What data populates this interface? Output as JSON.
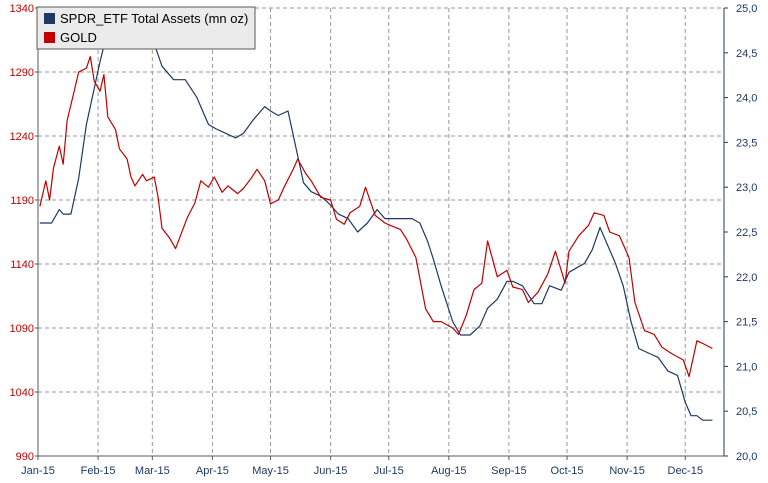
{
  "chart_data": {
    "type": "line",
    "legend_position": "top-left",
    "grid": true,
    "x_tick_labels": [
      "Jan-15",
      "Feb-15",
      "Mar-15",
      "Apr-15",
      "May-15",
      "Jun-15",
      "Jul-15",
      "Aug-15",
      "Sep-15",
      "Oct-15",
      "Nov-15",
      "Dec-15"
    ],
    "y_left": {
      "ylim": [
        990,
        1340
      ],
      "ticks": [
        990,
        1040,
        1090,
        1140,
        1190,
        1240,
        1290,
        1340
      ],
      "tick_labels": [
        "990",
        "1040",
        "1090",
        "1140",
        "1190",
        "1240",
        "1290",
        "1340"
      ]
    },
    "y_right": {
      "ylim": [
        20.0,
        25.0
      ],
      "ticks": [
        20.0,
        20.5,
        21.0,
        21.5,
        22.0,
        22.5,
        23.0,
        23.5,
        24.0,
        24.5,
        25.0
      ],
      "tick_labels": [
        "20,0",
        "20,5",
        "21,0",
        "21,5",
        "22,0",
        "22,5",
        "23,0",
        "23,5",
        "24,0",
        "24,5",
        "25,0"
      ]
    },
    "series": [
      {
        "name": "SPDR_ETF Total Assets (mn oz)",
        "axis": "right",
        "color": "#1f3864",
        "x": [
          "2015-01-02",
          "2015-01-08",
          "2015-01-12",
          "2015-01-14",
          "2015-01-18",
          "2015-01-22",
          "2015-01-26",
          "2015-01-30",
          "2015-02-02",
          "2015-02-06",
          "2015-02-10",
          "2015-02-16",
          "2015-02-20",
          "2015-02-26",
          "2015-03-02",
          "2015-03-06",
          "2015-03-12",
          "2015-03-18",
          "2015-03-24",
          "2015-03-30",
          "2015-04-03",
          "2015-04-08",
          "2015-04-13",
          "2015-04-17",
          "2015-04-22",
          "2015-04-28",
          "2015-05-01",
          "2015-05-05",
          "2015-05-10",
          "2015-05-15",
          "2015-05-18",
          "2015-05-22",
          "2015-05-27",
          "2015-06-01",
          "2015-06-05",
          "2015-06-10",
          "2015-06-15",
          "2015-06-20",
          "2015-06-25",
          "2015-06-29",
          "2015-07-03",
          "2015-07-08",
          "2015-07-13",
          "2015-07-17",
          "2015-07-21",
          "2015-07-24",
          "2015-07-28",
          "2015-08-03",
          "2015-08-07",
          "2015-08-12",
          "2015-08-17",
          "2015-08-21",
          "2015-08-26",
          "2015-08-31",
          "2015-09-03",
          "2015-09-08",
          "2015-09-14",
          "2015-09-18",
          "2015-09-22",
          "2015-09-28",
          "2015-10-02",
          "2015-10-06",
          "2015-10-10",
          "2015-10-14",
          "2015-10-18",
          "2015-10-22",
          "2015-10-26",
          "2015-10-30",
          "2015-11-03",
          "2015-11-07",
          "2015-11-12",
          "2015-11-17",
          "2015-11-22",
          "2015-11-27",
          "2015-12-01",
          "2015-12-04",
          "2015-12-07",
          "2015-12-10",
          "2015-12-15"
        ],
        "values": [
          22.6,
          22.6,
          22.75,
          22.7,
          22.7,
          23.1,
          23.7,
          24.1,
          24.4,
          24.75,
          25.0,
          24.95,
          24.85,
          24.8,
          24.6,
          24.35,
          24.2,
          24.2,
          24.0,
          23.7,
          23.65,
          23.6,
          23.55,
          23.6,
          23.75,
          23.9,
          23.85,
          23.8,
          23.85,
          23.35,
          23.05,
          22.95,
          22.9,
          22.8,
          22.7,
          22.65,
          22.5,
          22.6,
          22.75,
          22.65,
          22.65,
          22.65,
          22.65,
          22.6,
          22.4,
          22.2,
          21.9,
          21.5,
          21.35,
          21.35,
          21.45,
          21.65,
          21.75,
          21.95,
          21.95,
          21.9,
          21.7,
          21.7,
          21.9,
          21.85,
          22.05,
          22.1,
          22.15,
          22.3,
          22.55,
          22.35,
          22.15,
          21.9,
          21.5,
          21.2,
          21.15,
          21.1,
          20.95,
          20.9,
          20.6,
          20.45,
          20.45,
          20.4,
          20.4
        ]
      },
      {
        "name": "GOLD",
        "axis": "left",
        "color": "#c00000",
        "x": [
          "2015-01-02",
          "2015-01-05",
          "2015-01-07",
          "2015-01-09",
          "2015-01-12",
          "2015-01-14",
          "2015-01-16",
          "2015-01-20",
          "2015-01-22",
          "2015-01-26",
          "2015-01-28",
          "2015-01-30",
          "2015-02-02",
          "2015-02-04",
          "2015-02-06",
          "2015-02-10",
          "2015-02-12",
          "2015-02-16",
          "2015-02-18",
          "2015-02-20",
          "2015-02-24",
          "2015-02-26",
          "2015-03-02",
          "2015-03-04",
          "2015-03-06",
          "2015-03-10",
          "2015-03-13",
          "2015-03-17",
          "2015-03-19",
          "2015-03-23",
          "2015-03-26",
          "2015-03-30",
          "2015-04-02",
          "2015-04-06",
          "2015-04-09",
          "2015-04-14",
          "2015-04-17",
          "2015-04-21",
          "2015-04-24",
          "2015-04-28",
          "2015-05-01",
          "2015-05-05",
          "2015-05-08",
          "2015-05-13",
          "2015-05-15",
          "2015-05-19",
          "2015-05-22",
          "2015-05-27",
          "2015-06-01",
          "2015-06-04",
          "2015-06-08",
          "2015-06-11",
          "2015-06-16",
          "2015-06-19",
          "2015-06-24",
          "2015-06-29",
          "2015-07-02",
          "2015-07-07",
          "2015-07-10",
          "2015-07-15",
          "2015-07-20",
          "2015-07-24",
          "2015-07-28",
          "2015-08-03",
          "2015-08-06",
          "2015-08-10",
          "2015-08-14",
          "2015-08-18",
          "2015-08-21",
          "2015-08-26",
          "2015-08-31",
          "2015-09-03",
          "2015-09-08",
          "2015-09-11",
          "2015-09-16",
          "2015-09-21",
          "2015-09-25",
          "2015-09-30",
          "2015-10-02",
          "2015-10-07",
          "2015-10-12",
          "2015-10-15",
          "2015-10-20",
          "2015-10-23",
          "2015-10-28",
          "2015-11-02",
          "2015-11-05",
          "2015-11-10",
          "2015-11-15",
          "2015-11-19",
          "2015-11-24",
          "2015-11-30",
          "2015-12-03",
          "2015-12-07",
          "2015-12-10",
          "2015-12-15"
        ],
        "values": [
          1185,
          1205,
          1190,
          1215,
          1232,
          1218,
          1252,
          1277,
          1290,
          1293,
          1302,
          1283,
          1275,
          1288,
          1255,
          1245,
          1230,
          1222,
          1208,
          1201,
          1210,
          1205,
          1208,
          1192,
          1168,
          1160,
          1152,
          1168,
          1176,
          1188,
          1205,
          1200,
          1208,
          1196,
          1201,
          1195,
          1199,
          1207,
          1214,
          1205,
          1187,
          1190,
          1200,
          1215,
          1222,
          1211,
          1205,
          1192,
          1190,
          1175,
          1171,
          1180,
          1185,
          1200,
          1178,
          1172,
          1170,
          1167,
          1160,
          1145,
          1105,
          1095,
          1095,
          1090,
          1085,
          1100,
          1120,
          1125,
          1158,
          1130,
          1135,
          1122,
          1120,
          1110,
          1118,
          1132,
          1150,
          1125,
          1150,
          1162,
          1170,
          1180,
          1178,
          1165,
          1162,
          1145,
          1110,
          1088,
          1085,
          1075,
          1070,
          1065,
          1052,
          1080,
          1078,
          1074
        ]
      }
    ]
  }
}
